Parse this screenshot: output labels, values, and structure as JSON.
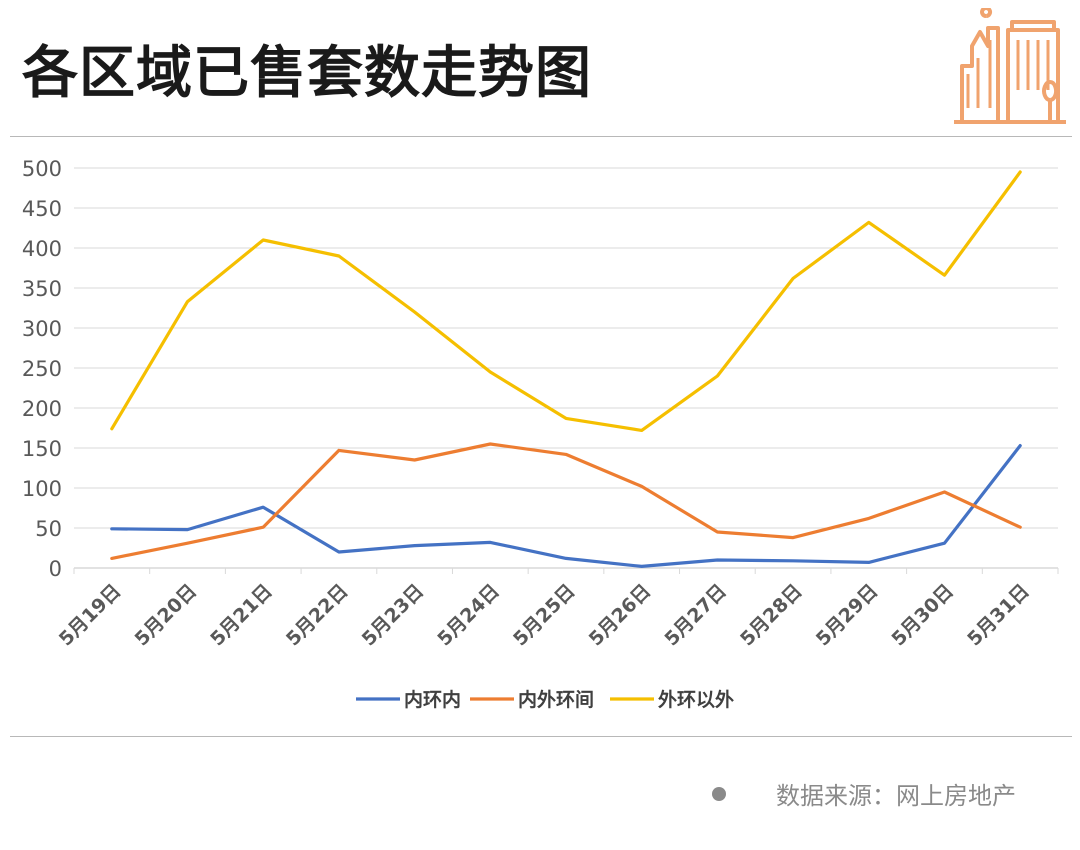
{
  "title": "各区域已售套数走势图",
  "source": "数据来源：网上房地产",
  "colors": {
    "series": [
      "#4472C4",
      "#ED7D31",
      "#F5BF00"
    ],
    "grid": "#d9d9d9",
    "axis_text": "#595959",
    "logo": "#F0A36E"
  },
  "logo_icon": "city-buildings-icon",
  "chart_data": {
    "type": "line",
    "categories": [
      "5月19日",
      "5月20日",
      "5月21日",
      "5月22日",
      "5月23日",
      "5月24日",
      "5月25日",
      "5月26日",
      "5月27日",
      "5月28日",
      "5月29日",
      "5月30日",
      "5月31日"
    ],
    "series": [
      {
        "name": "内环内",
        "values": [
          49,
          48,
          76,
          20,
          28,
          32,
          12,
          2,
          10,
          9,
          7,
          31,
          153
        ]
      },
      {
        "name": "内外环间",
        "values": [
          12,
          31,
          51,
          147,
          135,
          155,
          142,
          102,
          45,
          38,
          62,
          95,
          51
        ]
      },
      {
        "name": "外环以外",
        "values": [
          174,
          333,
          410,
          390,
          320,
          245,
          187,
          172,
          240,
          362,
          432,
          366,
          495
        ]
      }
    ],
    "ylim": [
      0,
      500
    ],
    "yticks": [
      0,
      50,
      100,
      150,
      200,
      250,
      300,
      350,
      400,
      450,
      500
    ],
    "grid": true,
    "legend": "bottom"
  }
}
